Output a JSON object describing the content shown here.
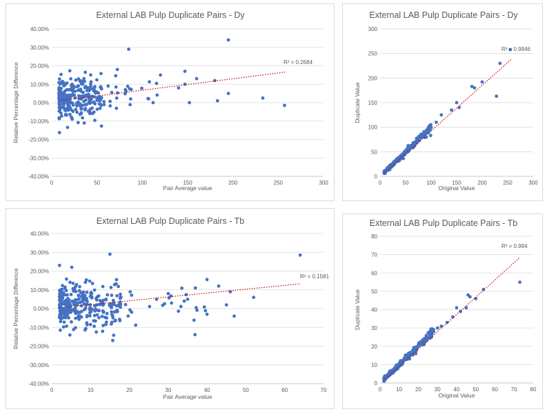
{
  "charts": [
    {
      "type": "scatter",
      "title": "External LAB Pulp Duplicate Pairs - Dy",
      "xlabel": "Pair Average value",
      "ylabel": "Relative Percentage Difference",
      "xlim": [
        0,
        300
      ],
      "ylim": [
        -40,
        40
      ],
      "x_ticks": [
        "0",
        "50",
        "100",
        "150",
        "200",
        "250",
        "300"
      ],
      "y_ticks": [
        "40.00%",
        "30.00%",
        "20.00%",
        "10.00%",
        "0.00%",
        "-10.00%",
        "-20.00%",
        "-30.00%",
        "-40.00%"
      ],
      "y_tick_values": [
        40,
        30,
        20,
        10,
        0,
        -10,
        -20,
        -30,
        -40
      ],
      "trendline": {
        "x": [
          8,
          258
        ],
        "y": [
          1.0,
          16.6
        ],
        "r2": "R² = 0.2684"
      },
      "colors": {
        "points": "#4472c4",
        "trend": "#c00000",
        "grid": "#d9d9d9"
      },
      "cluster": {
        "xmin": 8,
        "xmax": 55,
        "ymean": 3,
        "ysd": 5.5,
        "count": 300
      }
    },
    {
      "type": "scatter",
      "title": "External LAB Pulp Duplicate Pairs - Dy",
      "xlabel": "Original Value",
      "ylabel": "Duplicate Value",
      "xlim": [
        0,
        300
      ],
      "ylim": [
        0,
        300
      ],
      "x_ticks": [
        "0",
        "50",
        "100",
        "150",
        "200",
        "250",
        "300"
      ],
      "y_ticks": [
        "300",
        "250",
        "200",
        "150",
        "100",
        "50",
        "0"
      ],
      "y_tick_values": [
        300,
        250,
        200,
        150,
        100,
        50,
        0
      ],
      "trendline": {
        "x": [
          8,
          258
        ],
        "y": [
          7,
          239
        ],
        "r2": "R² = 0.9946"
      },
      "colors": {
        "points": "#4472c4",
        "trend": "#c00000",
        "grid": "#d9d9d9"
      },
      "cluster": {
        "xmin": 8,
        "xmax": 100,
        "slope": 1.0,
        "spread": 3,
        "count": 220
      }
    },
    {
      "type": "scatter",
      "title": "External LAB Pulp Duplicate Pairs - Tb",
      "xlabel": "Pair Average value",
      "ylabel": "Relative Percentage Difference",
      "xlim": [
        0,
        70
      ],
      "ylim": [
        -40,
        40
      ],
      "x_ticks": [
        "0",
        "10",
        "20",
        "30",
        "40",
        "50",
        "60",
        "70"
      ],
      "y_ticks": [
        "40.00%",
        "30.00%",
        "20.00%",
        "10.00%",
        "0.00%",
        "-10.00%",
        "-20.00%",
        "-30.00%",
        "-40.00%"
      ],
      "y_tick_values": [
        40,
        30,
        20,
        10,
        0,
        -10,
        -20,
        -30,
        -40
      ],
      "trendline": {
        "x": [
          2,
          64
        ],
        "y": [
          0.5,
          13.2
        ],
        "r2": "R² = 0.1581"
      },
      "colors": {
        "points": "#4472c4",
        "trend": "#c00000",
        "grid": "#d9d9d9"
      },
      "cluster": {
        "xmin": 2,
        "xmax": 18,
        "ymean": 2,
        "ysd": 6,
        "count": 320
      }
    },
    {
      "type": "scatter",
      "title": "External LAB Pulp Duplicate Pairs - Tb",
      "xlabel": "Original Value",
      "ylabel": "Duplicate Value",
      "xlim": [
        0,
        80
      ],
      "ylim": [
        0,
        80
      ],
      "x_ticks": [
        "0",
        "10",
        "20",
        "30",
        "40",
        "50",
        "60",
        "70",
        "80"
      ],
      "y_ticks": [
        "80",
        "70",
        "60",
        "50",
        "40",
        "30",
        "20",
        "10",
        "0"
      ],
      "y_tick_values": [
        80,
        70,
        60,
        50,
        40,
        30,
        20,
        10,
        0
      ],
      "trendline": {
        "x": [
          2,
          73
        ],
        "y": [
          1.6,
          68.4
        ],
        "r2": "R² = 0.994"
      },
      "colors": {
        "points": "#4472c4",
        "trend": "#c00000",
        "grid": "#d9d9d9"
      },
      "cluster": {
        "xmin": 2,
        "xmax": 28,
        "slope": 1.0,
        "spread": 0.9,
        "count": 240
      }
    }
  ],
  "chart_data": [
    {
      "type": "scatter",
      "title": "External LAB Pulp Duplicate Pairs - Dy",
      "xlabel": "Pair Average value",
      "ylabel": "Relative Percentage Difference",
      "xlim": [
        0,
        300
      ],
      "ylim": [
        -40,
        40
      ],
      "notable_points": [
        [
          85,
          29
        ],
        [
          195,
          34
        ],
        [
          233,
          2.5
        ],
        [
          257,
          -1.5
        ],
        [
          160,
          13
        ],
        [
          180,
          12
        ],
        [
          195,
          5
        ],
        [
          120,
          15
        ],
        [
          140,
          8
        ],
        [
          147,
          17
        ],
        [
          147,
          10
        ],
        [
          152,
          0
        ],
        [
          183,
          1
        ]
      ],
      "trendline_r2": "R² = 0.2684"
    },
    {
      "type": "scatter",
      "title": "External LAB Pulp Duplicate Pairs - Dy",
      "xlabel": "Original Value",
      "ylabel": "Duplicate Value",
      "xlim": [
        0,
        300
      ],
      "ylim": [
        0,
        300
      ],
      "notable_points": [
        [
          255,
          258
        ],
        [
          235,
          230
        ],
        [
          228,
          163
        ],
        [
          200,
          192
        ],
        [
          185,
          180
        ],
        [
          180,
          183
        ],
        [
          155,
          140
        ],
        [
          150,
          150
        ],
        [
          140,
          135
        ],
        [
          120,
          125
        ],
        [
          110,
          110
        ],
        [
          100,
          100
        ]
      ],
      "trendline_r2": "R² = 0.9946"
    },
    {
      "type": "scatter",
      "title": "External LAB Pulp Duplicate Pairs - Tb",
      "xlabel": "Pair Average value",
      "ylabel": "Relative Percentage Difference",
      "xlim": [
        0,
        70
      ],
      "ylim": [
        -40,
        40
      ],
      "notable_points": [
        [
          64,
          28.5
        ],
        [
          15,
          29
        ],
        [
          2,
          23
        ],
        [
          52,
          6
        ],
        [
          47,
          -4
        ],
        [
          46,
          9
        ],
        [
          40,
          15.5
        ],
        [
          40,
          -3
        ],
        [
          37,
          11
        ],
        [
          45,
          2
        ],
        [
          35,
          5
        ],
        [
          30,
          8
        ],
        [
          27,
          5
        ],
        [
          43,
          12
        ]
      ],
      "trendline_r2": "R² = 0.1581"
    },
    {
      "type": "scatter",
      "title": "External LAB Pulp Duplicate Pairs - Tb",
      "xlabel": "Original Value",
      "ylabel": "Duplicate Value",
      "xlim": [
        0,
        80
      ],
      "ylim": [
        0,
        80
      ],
      "notable_points": [
        [
          73,
          55
        ],
        [
          54,
          51
        ],
        [
          50,
          46
        ],
        [
          47,
          47
        ],
        [
          46,
          48
        ],
        [
          45,
          41
        ],
        [
          42,
          39
        ],
        [
          40,
          41
        ],
        [
          38,
          36
        ],
        [
          35,
          33
        ],
        [
          32,
          31
        ],
        [
          30,
          30
        ],
        [
          28,
          28
        ]
      ],
      "trendline_r2": "R² = 0.994"
    }
  ]
}
